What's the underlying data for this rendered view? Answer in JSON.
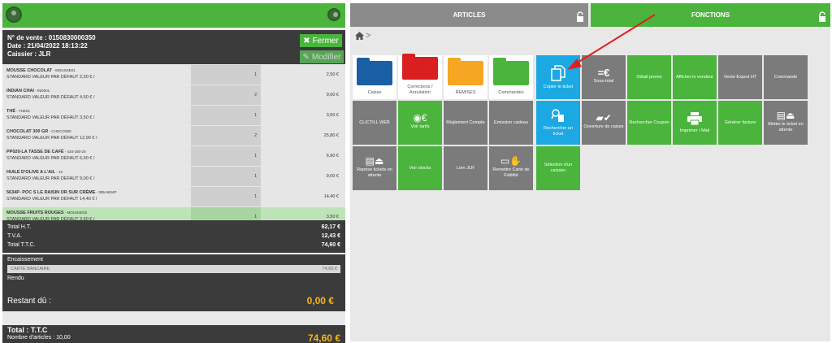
{
  "sale": {
    "number": "N° de vente : 0150830000350",
    "date": "Date : 21/04/2022 18:13:22",
    "cashier": "Caissier : JLR",
    "close_label": "Fermer",
    "edit_label": "Modifier"
  },
  "lines": [
    {
      "name": "MOUSSE CHOCOLAT",
      "code": " - MOUSSE01",
      "sub": "STANDARD VALEUR PAR DÉFAUT 2,50 € /",
      "qty": "1",
      "price": "2,50 €"
    },
    {
      "name": "INDIAN CHAI",
      "code": " - IND001",
      "sub": "STANDARD VALEUR PAR DÉFAUT 4,50 € /",
      "qty": "2",
      "price": "9,00 €"
    },
    {
      "name": "THÉ",
      "code": " - THE01",
      "sub": "STANDARD VALEUR PAR DÉFAUT 3,50 € /",
      "qty": "1",
      "price": "3,50 €"
    },
    {
      "name": "CHOCOLAT 300 GR",
      "code": " - CHOCO300",
      "sub": "STANDARD VALEUR PAR DÉFAUT 12,90 € /",
      "qty": "2",
      "price": "25,80 €"
    },
    {
      "name": "PP020-LA TASSE DE CAFÉ",
      "code": " - 434-180-20",
      "sub": "STANDARD VALEUR PAR DÉFAUT 6,90 € /",
      "qty": "1",
      "price": "6,90 €"
    },
    {
      "name": "HUILE D'OLIVE A L'AIL",
      "code": " - 12",
      "sub": "STANDARD VALEUR PAR DÉFAUT 9,00 € /",
      "qty": "1",
      "price": "9,00 €"
    },
    {
      "name": "5634P- POC S LE RAISIN OR SUR CRÈME",
      "code": " - 395-5634P",
      "sub": "STANDARD VALEUR PAR DÉFAUT 14,40 € /",
      "qty": "1",
      "price": "14,40 €"
    },
    {
      "name": "MOUSSE FRUITS ROUGES",
      "code": " - MOUSSE02",
      "sub": "STANDARD VALEUR PAR DÉFAUT 3,50 € /",
      "qty": "1",
      "price": "3,50 €"
    }
  ],
  "totals": {
    "ht_label": "Total H.T.",
    "ht": "62,17 €",
    "tva_label": "T.V.A.",
    "tva": "12,43 €",
    "ttc_label": "Total T.T.C.",
    "ttc": "74,60 €"
  },
  "payment": {
    "title": "Encaissement",
    "method": "CARTE BANCAIRE",
    "amount": "74,60 €",
    "rendu": "Rendu",
    "restant_label": "Restant dû :",
    "restant": "0,00 €"
  },
  "footer": {
    "title": "Total : T.T.C",
    "count": "Nombre d'articles : 10,00",
    "total": "74,60 €"
  },
  "tabs": {
    "articles": "ARTICLES",
    "fonctions": "FONCTIONS"
  },
  "breadcrumb": ">",
  "tiles": {
    "caisse": "Caisse",
    "corrections": "Corrections / Annulation",
    "remises": "REMISES",
    "commandes": "Commandes",
    "copier": "Copier le ticket",
    "soustotal": "Sous-total",
    "detail": "Détail promo",
    "afficher": "Afficher le vendeur",
    "export": "Vente Export HT",
    "commande": "Commande",
    "clictill": "CLICTILL WEB",
    "tarifs": "Voir tarifs",
    "reglement": "Règlement Compte",
    "cadeau": "Emission cadeau",
    "rechercher": "Rechercher un ticket",
    "ouverture": "Ouverture de caisse",
    "coupon": "Rechercher Coupon",
    "imprimer": "Imprimer / Mail",
    "facture": "Générer facture",
    "attente": "Mettre le ticket en attente",
    "reprise": "Reprise tickets en attente",
    "stocks": "Voir stocks",
    "lien": "Lien JLR",
    "fidelite": "Remettre Carte de Fidélité",
    "selection": "Sélection d'un caissier"
  },
  "colors": {
    "green": "#4ab43c",
    "dark": "#3b3b3b",
    "accent": "#f6b51c",
    "blue": "#1ca8e2",
    "folder_blue": "#1a5fa3",
    "folder_red": "#d91f1f",
    "folder_orange": "#f5a623",
    "folder_green": "#4ab43c"
  }
}
